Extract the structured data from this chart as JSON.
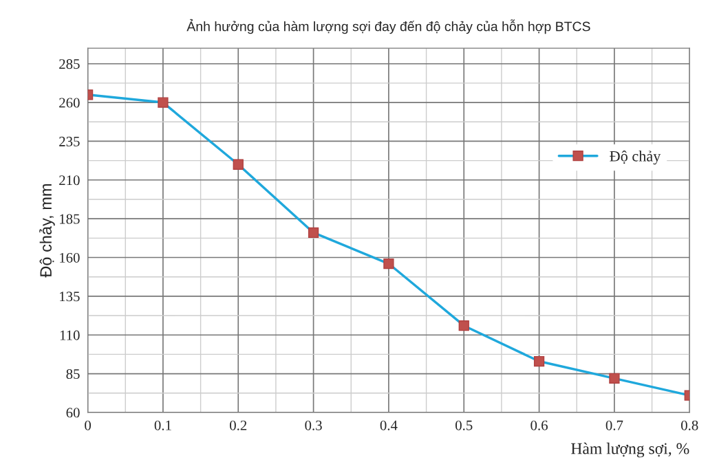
{
  "chart_data": {
    "type": "line",
    "title": "Ảnh hưởng của hàm lượng sợi đay đến độ chảy của hỗn hợp BTCS",
    "xlabel": "Hàm lượng sợi, %",
    "ylabel": "Độ chảy, mm",
    "x": [
      0,
      0.1,
      0.2,
      0.3,
      0.4,
      0.5,
      0.6,
      0.7,
      0.8
    ],
    "series": [
      {
        "name": "Độ chảy",
        "color": "#1fa8dc",
        "values": [
          265,
          260,
          220,
          176,
          156,
          116,
          93,
          82,
          71
        ]
      }
    ],
    "xlim": [
      0,
      0.8
    ],
    "xticks": [
      0,
      0.1,
      0.2,
      0.3,
      0.4,
      0.5,
      0.6,
      0.7,
      0.8
    ],
    "ylim": [
      60,
      295
    ],
    "yticks": [
      60,
      85,
      110,
      135,
      160,
      185,
      210,
      235,
      260,
      285
    ],
    "grid": true,
    "legend": "right",
    "marker": "square",
    "line_style": "solid"
  }
}
